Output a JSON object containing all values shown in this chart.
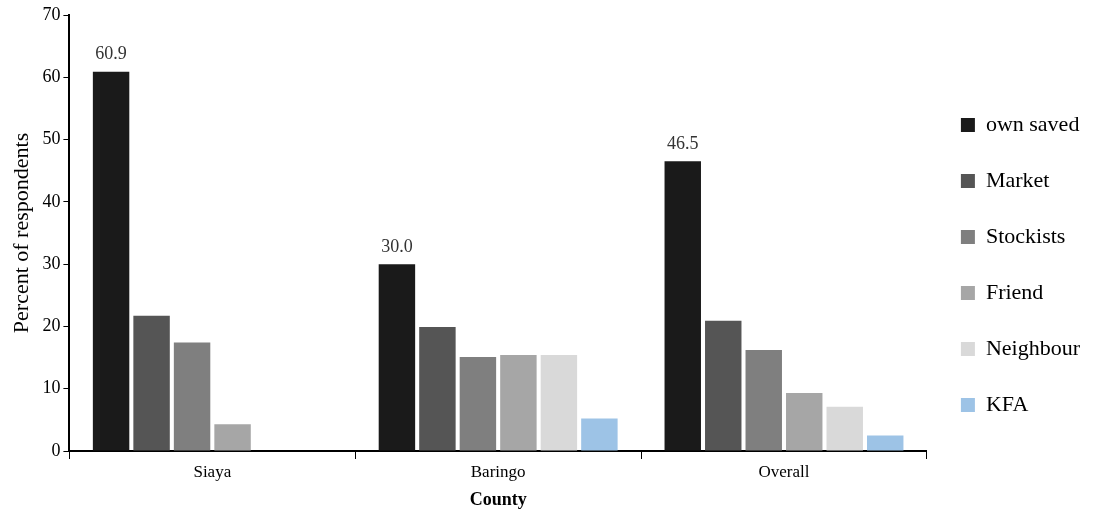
{
  "chart_data": {
    "type": "bar",
    "xlabel": "County",
    "ylabel": "Percent of respondents",
    "categories": [
      "Siaya",
      "Baringo",
      "Overall"
    ],
    "series": [
      {
        "name": "own saved",
        "color": "#1a1a1a",
        "values": [
          60.9,
          30.0,
          46.5
        ],
        "value_labels": [
          "60.9",
          "30.0",
          "46.5"
        ]
      },
      {
        "name": "Market",
        "color": "#555555",
        "values": [
          21.7,
          19.9,
          20.9
        ]
      },
      {
        "name": "Stockists",
        "color": "#7f7f7f",
        "values": [
          17.4,
          15.1,
          16.2
        ]
      },
      {
        "name": "Friend",
        "color": "#a6a6a6",
        "values": [
          4.3,
          15.4,
          9.3
        ]
      },
      {
        "name": "Neighbour",
        "color": "#d9d9d9",
        "values": [
          0,
          15.4,
          7.1
        ]
      },
      {
        "name": "KFA",
        "color": "#9dc3e6",
        "values": [
          0,
          5.2,
          2.5
        ]
      }
    ],
    "ylim": [
      0,
      70
    ],
    "yticks": [
      0,
      10,
      20,
      30,
      40,
      50,
      60,
      70
    ],
    "grid": false,
    "legend": "right"
  }
}
